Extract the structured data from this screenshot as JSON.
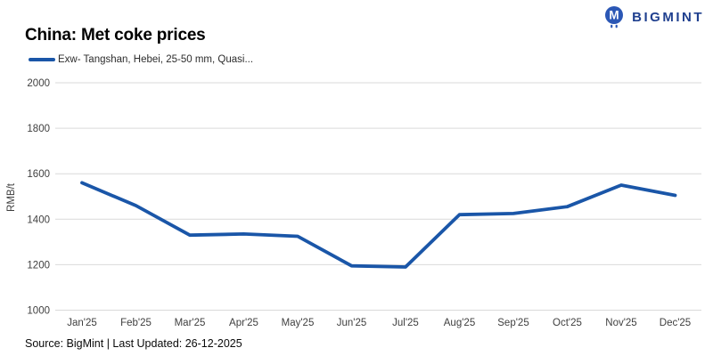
{
  "header": {
    "title": "China: Met coke prices",
    "logo_text": "BIGMINT",
    "logo_icon": "bigmint-m-circle-icon"
  },
  "legend": {
    "series_label": "Exw- Tangshan, Hebei, 25-50 mm, Quasi..."
  },
  "footer": {
    "source_text": "Source: BigMint | Last Updated: 26-12-2025"
  },
  "colors": {
    "line": "#1a56a8",
    "grid": "#d9d9d9",
    "axis_text": "#3f3f3f",
    "title_text": "#000000",
    "logo_navy": "#20408f",
    "logo_icon_blue": "#2b57b5"
  },
  "chart_data": {
    "type": "line",
    "title": "China: Met coke prices",
    "x": [
      "Jan'25",
      "Feb'25",
      "Mar'25",
      "Apr'25",
      "May'25",
      "Jun'25",
      "Jul'25",
      "Aug'25",
      "Sep'25",
      "Oct'25",
      "Nov'25",
      "Dec'25"
    ],
    "series": [
      {
        "name": "Exw- Tangshan, Hebei, 25-50 mm, Quasi...",
        "values": [
          1560,
          1460,
          1330,
          1335,
          1325,
          1195,
          1190,
          1420,
          1425,
          1455,
          1550,
          1505
        ]
      }
    ],
    "xlabel": "",
    "ylabel": "RMB/t",
    "ylim": [
      1000,
      2000
    ],
    "yticks": [
      1000,
      1200,
      1400,
      1600,
      1800,
      2000
    ],
    "grid": "horizontal",
    "legend_position": "top-left"
  }
}
